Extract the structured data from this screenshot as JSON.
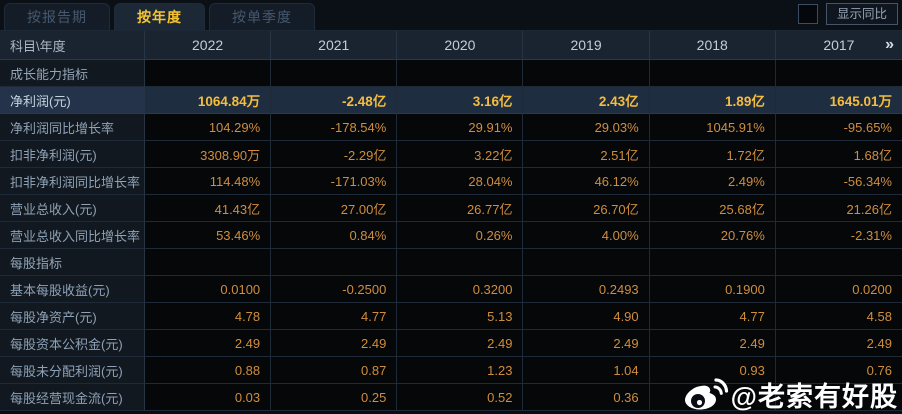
{
  "tabs": [
    {
      "label": "按报告期",
      "active": false
    },
    {
      "label": "按年度",
      "active": true
    },
    {
      "label": "按单季度",
      "active": false
    }
  ],
  "controls": {
    "yoy_checkbox_checked": false,
    "yoy_label": "显示同比"
  },
  "table": {
    "corner_label": "科目\\年度",
    "years": [
      "2022",
      "2021",
      "2020",
      "2019",
      "2018",
      "2017"
    ],
    "more_icon": "»",
    "rows": [
      {
        "type": "section",
        "label": "成长能力指标",
        "values": [
          "",
          "",
          "",
          "",
          "",
          ""
        ]
      },
      {
        "type": "highlight",
        "label": "净利润(元)",
        "values": [
          "1064.84万",
          "-2.48亿",
          "3.16亿",
          "2.43亿",
          "1.89亿",
          "1645.01万"
        ]
      },
      {
        "type": "normal",
        "label": "净利润同比增长率",
        "values": [
          "104.29%",
          "-178.54%",
          "29.91%",
          "29.03%",
          "1045.91%",
          "-95.65%"
        ]
      },
      {
        "type": "normal",
        "label": "扣非净利润(元)",
        "values": [
          "3308.90万",
          "-2.29亿",
          "3.22亿",
          "2.51亿",
          "1.72亿",
          "1.68亿"
        ]
      },
      {
        "type": "normal",
        "label": "扣非净利润同比增长率",
        "values": [
          "114.48%",
          "-171.03%",
          "28.04%",
          "46.12%",
          "2.49%",
          "-56.34%"
        ]
      },
      {
        "type": "normal",
        "label": "营业总收入(元)",
        "values": [
          "41.43亿",
          "27.00亿",
          "26.77亿",
          "26.70亿",
          "25.68亿",
          "21.26亿"
        ]
      },
      {
        "type": "normal",
        "label": "营业总收入同比增长率",
        "values": [
          "53.46%",
          "0.84%",
          "0.26%",
          "4.00%",
          "20.76%",
          "-2.31%"
        ]
      },
      {
        "type": "section",
        "label": "每股指标",
        "values": [
          "",
          "",
          "",
          "",
          "",
          ""
        ]
      },
      {
        "type": "normal",
        "label": "基本每股收益(元)",
        "values": [
          "0.0100",
          "-0.2500",
          "0.3200",
          "0.2493",
          "0.1900",
          "0.0200"
        ]
      },
      {
        "type": "normal",
        "label": "每股净资产(元)",
        "values": [
          "4.78",
          "4.77",
          "5.13",
          "4.90",
          "4.77",
          "4.58"
        ]
      },
      {
        "type": "normal",
        "label": "每股资本公积金(元)",
        "values": [
          "2.49",
          "2.49",
          "2.49",
          "2.49",
          "2.49",
          "2.49"
        ]
      },
      {
        "type": "normal",
        "label": "每股未分配利润(元)",
        "values": [
          "0.88",
          "0.87",
          "1.23",
          "1.04",
          "0.93",
          "0.76"
        ]
      },
      {
        "type": "normal",
        "label": "每股经营现金流(元)",
        "values": [
          "0.03",
          "0.25",
          "0.52",
          "0.36",
          "",
          ""
        ]
      }
    ]
  },
  "watermark": {
    "text": "@老索有好股",
    "icon": "weibo-icon"
  },
  "colors": {
    "accent_yellow": "#f5c430",
    "value_orange": "#d08d3e",
    "highlight_row_bg": "#1f2d40",
    "header_bg": "#1a2430",
    "page_bg": "#0a0e13"
  }
}
